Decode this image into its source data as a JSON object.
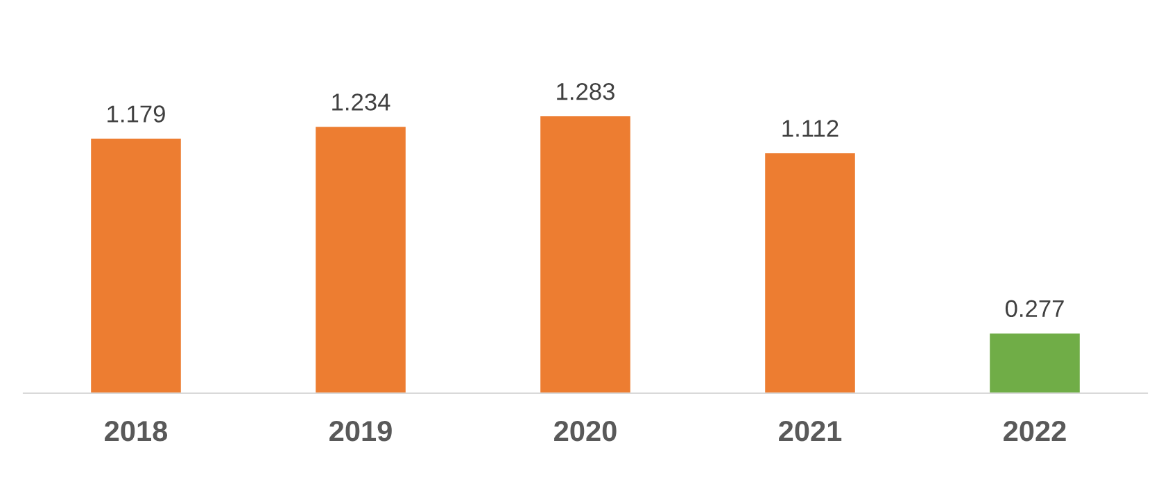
{
  "chart_data": {
    "type": "bar",
    "categories": [
      "2018",
      "2019",
      "2020",
      "2021",
      "2022"
    ],
    "values": [
      1.179,
      1.234,
      1.283,
      1.112,
      0.277
    ],
    "colors": [
      "#ed7d31",
      "#ed7d31",
      "#ed7d31",
      "#ed7d31",
      "#70ad47"
    ],
    "data_labels": true,
    "grid": false,
    "legend": false
  }
}
